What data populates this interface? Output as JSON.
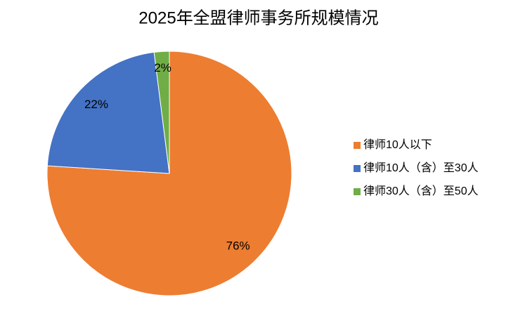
{
  "chart_data": {
    "type": "pie",
    "title": "2025年全盟律师事务所规模情况",
    "categories": [
      "律师10人以下",
      "律师10人（含）至30人",
      "律师30人（含）至50人"
    ],
    "values": [
      76,
      22,
      2
    ],
    "value_labels": [
      "76%",
      "22%",
      "2%"
    ],
    "colors": [
      "#ed7d31",
      "#4472c4",
      "#70ad47"
    ],
    "legend": "right"
  }
}
